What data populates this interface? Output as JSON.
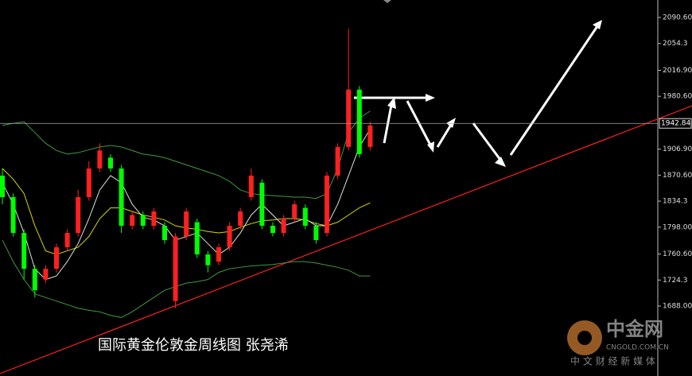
{
  "chart_data": {
    "type": "candlestick",
    "title": "国际黄金伦敦金周线图  张尧浠",
    "watermark": {
      "brand": "中金网",
      "site": "CNGOLD.COM.CN",
      "slogan": "中 文 财 经 新 媒 体"
    },
    "current_price": 1942.84,
    "ylim": [
      1590.4,
      2115.0
    ],
    "yticks": [
      {
        "value": 2090.6,
        "label": "2090.60"
      },
      2054.3,
      {
        "value": 2016.9,
        "label": "2016.90"
      },
      {
        "value": 1980.6,
        "label": "1980.60"
      },
      {
        "value": 1906.9,
        "label": "1906.90"
      },
      {
        "value": 1870.6,
        "label": "1870.60"
      },
      1834.3,
      {
        "value": 1798.0,
        "label": "1798.00"
      },
      {
        "value": 1760.6,
        "label": "1760.60"
      },
      1724.3,
      {
        "value": 1688.0,
        "label": "1688.00"
      }
    ],
    "up_color": "#ff2020",
    "down_color": "#00ff00",
    "open": [
      1870,
      1840,
      1790,
      1740,
      1725,
      1740,
      1770,
      1790,
      1840,
      1880,
      1895,
      1880,
      1800,
      1815,
      1800,
      1800,
      1695,
      1785,
      1805,
      1760,
      1750,
      1770,
      1800,
      1840,
      1860,
      1800,
      1790,
      1810,
      1825,
      1800,
      1790,
      1870,
      1910,
      1990,
      1910
    ],
    "high": [
      1880,
      1845,
      1795,
      1745,
      1745,
      1775,
      1795,
      1850,
      1890,
      1915,
      1900,
      1885,
      1820,
      1820,
      1825,
      1805,
      1790,
      1825,
      1810,
      1765,
      1775,
      1805,
      1825,
      1880,
      1865,
      1805,
      1815,
      1835,
      1830,
      1805,
      1875,
      1915,
      2075,
      1995,
      1945
    ],
    "low": [
      1830,
      1785,
      1725,
      1700,
      1720,
      1735,
      1765,
      1785,
      1835,
      1875,
      1875,
      1790,
      1795,
      1795,
      1795,
      1775,
      1685,
      1780,
      1755,
      1735,
      1745,
      1765,
      1795,
      1835,
      1795,
      1785,
      1785,
      1805,
      1795,
      1775,
      1785,
      1865,
      1905,
      1895,
      1905
    ],
    "close": [
      1840,
      1790,
      1740,
      1710,
      1740,
      1770,
      1790,
      1840,
      1880,
      1905,
      1880,
      1800,
      1815,
      1800,
      1820,
      1780,
      1785,
      1820,
      1760,
      1745,
      1770,
      1800,
      1820,
      1870,
      1800,
      1790,
      1810,
      1830,
      1800,
      1780,
      1870,
      1910,
      1990,
      1900,
      1940
    ],
    "series": [
      {
        "name": "upper",
        "color": "#3f9a3f",
        "values": [
          1940,
          1943,
          1945,
          1930,
          1915,
          1905,
          1900,
          1902,
          1906,
          1910,
          1912,
          1910,
          1905,
          1900,
          1898,
          1895,
          1890,
          1885,
          1880,
          1875,
          1870,
          1862,
          1850,
          1845,
          1843,
          1842,
          1841,
          1840,
          1840,
          1838,
          1845,
          1880,
          1930,
          1950,
          1960
        ]
      },
      {
        "name": "lower",
        "color": "#3f9a3f",
        "values": [
          1780,
          1750,
          1725,
          1705,
          1700,
          1695,
          1690,
          1685,
          1682,
          1680,
          1675,
          1672,
          1680,
          1690,
          1700,
          1710,
          1715,
          1720,
          1722,
          1725,
          1735,
          1740,
          1742,
          1744,
          1745,
          1746,
          1748,
          1750,
          1750,
          1748,
          1745,
          1742,
          1738,
          1730,
          1730
        ]
      },
      {
        "name": "ma-yellow",
        "color": "#d8d800",
        "values": [
          1880,
          1865,
          1845,
          1800,
          1765,
          1760,
          1765,
          1770,
          1785,
          1810,
          1825,
          1825,
          1820,
          1815,
          1812,
          1808,
          1800,
          1797,
          1795,
          1792,
          1790,
          1792,
          1798,
          1803,
          1807,
          1808,
          1810,
          1810,
          1808,
          1803,
          1800,
          1805,
          1815,
          1825,
          1832
        ]
      },
      {
        "name": "ma-white",
        "color": "#e0e0e0",
        "values": [
          1860,
          1830,
          1790,
          1740,
          1725,
          1730,
          1750,
          1775,
          1810,
          1850,
          1870,
          1860,
          1830,
          1812,
          1808,
          1800,
          1780,
          1785,
          1790,
          1775,
          1760,
          1770,
          1790,
          1815,
          1830,
          1815,
          1800,
          1805,
          1810,
          1800,
          1800,
          1830,
          1870,
          1910,
          1935
        ]
      }
    ]
  }
}
